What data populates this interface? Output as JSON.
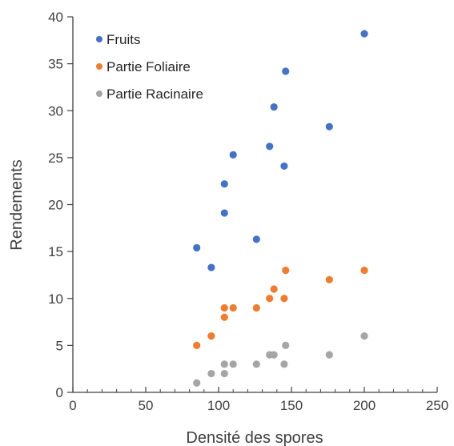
{
  "chart_data": {
    "type": "scatter",
    "title": "",
    "xlabel": "Densité des spores",
    "ylabel": "Rendements",
    "xlim": [
      0,
      250
    ],
    "ylim": [
      0,
      40
    ],
    "xticks": [
      0,
      50,
      100,
      150,
      200,
      250
    ],
    "yticks": [
      0,
      5,
      10,
      15,
      20,
      25,
      30,
      35,
      40
    ],
    "grid": false,
    "legend_position": "top-left",
    "series": [
      {
        "name": "Fruits",
        "color": "#4472c4",
        "points": [
          [
            85,
            15.4
          ],
          [
            95,
            13.3
          ],
          [
            104,
            22.2
          ],
          [
            104,
            19.1
          ],
          [
            110,
            25.3
          ],
          [
            126,
            16.3
          ],
          [
            135,
            26.2
          ],
          [
            138,
            30.4
          ],
          [
            145,
            24.1
          ],
          [
            146,
            34.2
          ],
          [
            176,
            28.3
          ],
          [
            200,
            38.2
          ]
        ]
      },
      {
        "name": "Partie Foliaire",
        "color": "#ed7d31",
        "points": [
          [
            85,
            5
          ],
          [
            95,
            6
          ],
          [
            104,
            8
          ],
          [
            104,
            9
          ],
          [
            110,
            9
          ],
          [
            126,
            9
          ],
          [
            135,
            10
          ],
          [
            138,
            11
          ],
          [
            145,
            10
          ],
          [
            146,
            13
          ],
          [
            176,
            12
          ],
          [
            200,
            13
          ]
        ]
      },
      {
        "name": "Partie Racinaire",
        "color": "#a5a5a5",
        "points": [
          [
            85,
            1
          ],
          [
            95,
            2
          ],
          [
            104,
            2
          ],
          [
            104,
            3
          ],
          [
            110,
            3
          ],
          [
            126,
            3
          ],
          [
            135,
            4
          ],
          [
            138,
            4
          ],
          [
            145,
            3
          ],
          [
            146,
            5
          ],
          [
            176,
            4
          ],
          [
            200,
            6
          ]
        ]
      }
    ]
  }
}
